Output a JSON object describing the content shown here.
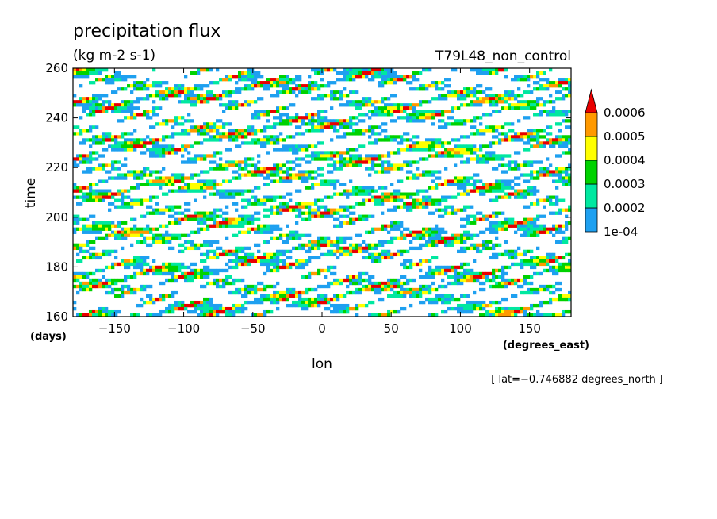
{
  "chart_data": {
    "type": "heatmap",
    "title": "precipitation flux",
    "units": "(kg m-2 s-1)",
    "experiment": "T79L48_non_control",
    "xlabel": "lon",
    "xunits": "(degrees_east)",
    "ylabel": "time",
    "yunits": "(days)",
    "xlim": [
      -180,
      180
    ],
    "ylim": [
      160,
      260
    ],
    "xticks": [
      -150,
      -100,
      -50,
      0,
      50,
      100,
      150
    ],
    "yticks": [
      160,
      180,
      200,
      220,
      240,
      260
    ],
    "xtick_labels": [
      "−150",
      "−100",
      "−50",
      "0",
      "50",
      "100",
      "150"
    ],
    "ytick_labels": [
      "160",
      "180",
      "200",
      "220",
      "240",
      "260"
    ],
    "colorbar": {
      "levels": [
        0.0001,
        0.0002,
        0.0003,
        0.0004,
        0.0005,
        0.0006
      ],
      "labels": [
        "1e-04",
        "0.0002",
        "0.0003",
        "0.0004",
        "0.0005",
        "0.0006"
      ],
      "colors": [
        "#1ea0f0",
        "#00e8a0",
        "#00d200",
        "#ffff00",
        "#ff9900",
        "#e80000"
      ],
      "extend": "max"
    },
    "annotation": "[ lat=−0.746882 degrees_north ]"
  }
}
